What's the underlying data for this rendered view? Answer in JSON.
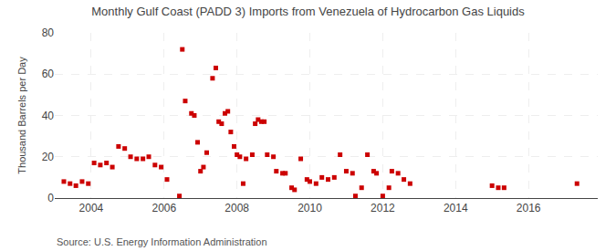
{
  "chart_data": {
    "type": "scatter",
    "title": "Monthly Gulf Coast (PADD 3) Imports from Venezuela of Hydrocarbon Gas Liquids",
    "ylabel": "Thousand Barrels per Day",
    "annotations": [
      "Source: U.S. Energy Information Administration"
    ],
    "color": "#cc0000",
    "marker": "square",
    "grid": true,
    "xlim": [
      2003.0,
      2017.9
    ],
    "xticks": [
      2004,
      2006,
      2008,
      2010,
      2012,
      2014,
      2016
    ],
    "ylim": [
      0,
      80
    ],
    "yticks": [
      0,
      20,
      40,
      60,
      80
    ],
    "x": [
      2003.25,
      2003.42,
      2003.58,
      2003.75,
      2003.92,
      2004.08,
      2004.25,
      2004.42,
      2004.58,
      2004.75,
      2004.92,
      2005.08,
      2005.25,
      2005.42,
      2005.58,
      2005.75,
      2005.92,
      2006.08,
      2006.42,
      2006.5,
      2006.58,
      2006.75,
      2006.83,
      2006.92,
      2007.0,
      2007.08,
      2007.17,
      2007.33,
      2007.42,
      2007.5,
      2007.58,
      2007.67,
      2007.75,
      2007.83,
      2007.92,
      2008.0,
      2008.08,
      2008.17,
      2008.25,
      2008.42,
      2008.5,
      2008.58,
      2008.67,
      2008.75,
      2008.83,
      2009.0,
      2009.08,
      2009.25,
      2009.33,
      2009.5,
      2009.58,
      2009.75,
      2009.92,
      2010.0,
      2010.17,
      2010.33,
      2010.5,
      2010.67,
      2010.83,
      2011.0,
      2011.17,
      2011.25,
      2011.42,
      2011.58,
      2011.75,
      2011.83,
      2012.0,
      2012.17,
      2012.25,
      2012.42,
      2012.58,
      2012.75,
      2015.0,
      2015.17,
      2015.33,
      2017.33
    ],
    "values": [
      8,
      7,
      6,
      8,
      7,
      17,
      16,
      17,
      15,
      25,
      24,
      20,
      19,
      19,
      20,
      16,
      15,
      9,
      1,
      72,
      47,
      41,
      40,
      27,
      13,
      15,
      22,
      58,
      63,
      37,
      36,
      41,
      42,
      32,
      25,
      21,
      20,
      7,
      19,
      21,
      36,
      38,
      37,
      37,
      21,
      20,
      13,
      12,
      12,
      5,
      4,
      19,
      9,
      8,
      7,
      10,
      9,
      10,
      21,
      13,
      12,
      1,
      5,
      21,
      13,
      12,
      1,
      5,
      13,
      12,
      9,
      7,
      6,
      5,
      5,
      7
    ]
  }
}
